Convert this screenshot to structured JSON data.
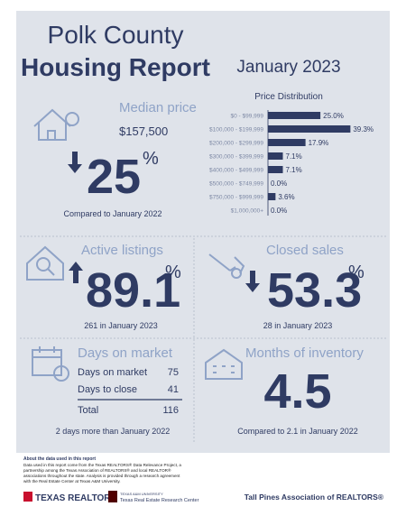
{
  "header": {
    "county": "Polk County",
    "title": "Housing Report",
    "period": "January 2023"
  },
  "price_distribution": {
    "title": "Price Distribution",
    "categories": [
      "$0 - $99,999",
      "$100,000 - $199,999",
      "$200,000 - $299,999",
      "$300,000 - $399,999",
      "$400,000 - $499,999",
      "$500,000 - $749,999",
      "$750,000 - $999,999",
      "$1,000,000+"
    ],
    "values": [
      25,
      39.3,
      17.9,
      7.1,
      7.1,
      0,
      3.6,
      0
    ],
    "value_labels": [
      "25.0%",
      "39.3%",
      "17.9%",
      "7.1%",
      "7.1%",
      "0.0%",
      "3.6%",
      "0.0%"
    ],
    "xlim": [
      0,
      40
    ],
    "color": "#2f3b63"
  },
  "median_price": {
    "heading": "Median price",
    "value": "$157,500",
    "change": "25",
    "unit": "%",
    "note": "Compared to January 2022"
  },
  "active_listings": {
    "heading": "Active listings",
    "change": "89.1",
    "unit": "%",
    "note": "261 in January 2023"
  },
  "closed_sales": {
    "heading": "Closed sales",
    "change": "53.3",
    "unit": "%",
    "note": "28 in January 2023"
  },
  "days_on_market": {
    "heading": "Days on market",
    "rows": [
      [
        "Days on market",
        "75"
      ],
      [
        "Days to close",
        "41"
      ]
    ],
    "total": [
      "Total",
      "116"
    ],
    "note": "2 days more than January 2022"
  },
  "months_of_inventory": {
    "heading": "Months of inventory",
    "value": "4.5",
    "note": "Compared to 2.1 in January 2022"
  },
  "footer": {
    "about_title": "About the data used in this report",
    "about_text": [
      "Data used in this report come from the Texas REALTORS® Data Relevance Project, a",
      "partnership among the Texas Association of REALTORS® and local REALTOR®",
      "associations throughout the state. Analysis is provided through a research agreement",
      "with the Real Estate Center at Texas A&M University."
    ],
    "logo_realtors": "TEXAS REALTORS",
    "logo_university": "TEXAS A&M UNIVERSITY",
    "logo_center": "Texas Real Estate Research Center",
    "association": "Tall Pines Association of REALTORS®"
  }
}
